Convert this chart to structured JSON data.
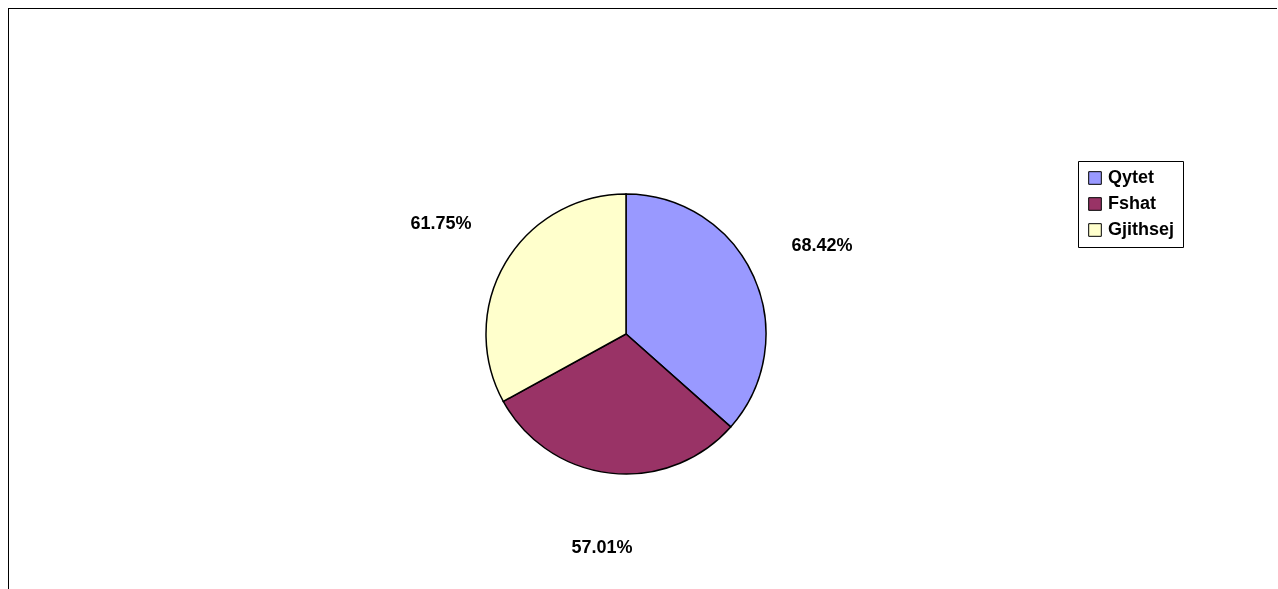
{
  "chart_data": {
    "type": "pie",
    "categories": [
      "Qytet",
      "Fshat",
      "Gjithsej"
    ],
    "values": [
      68.42,
      57.01,
      61.75
    ],
    "colors": [
      "#9999ff",
      "#993366",
      "#ffffcc"
    ],
    "value_labels": [
      "68.42%",
      "57.01%",
      "61.75%"
    ],
    "legend": "right"
  }
}
